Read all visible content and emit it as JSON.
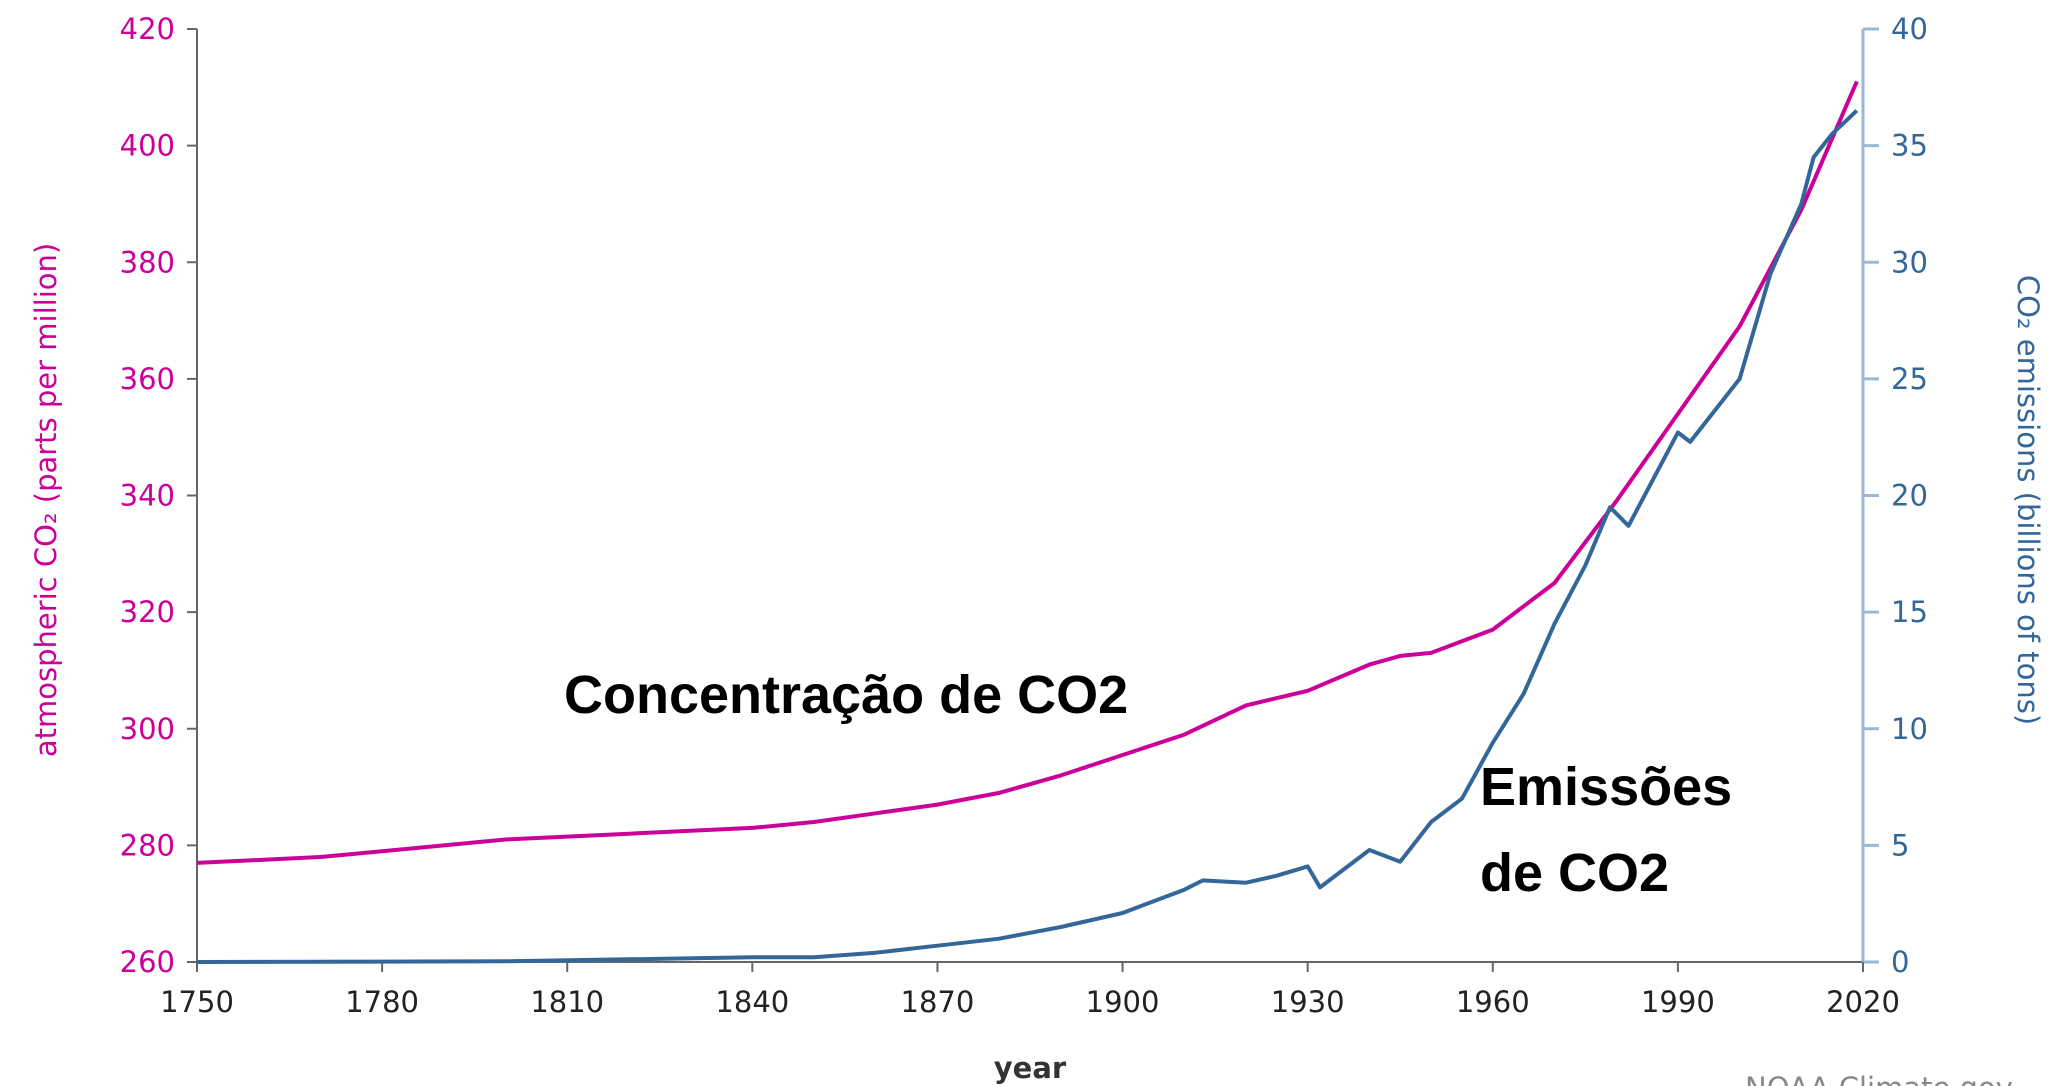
{
  "chart_data": {
    "type": "line",
    "xlabel": "year",
    "ylabel": "atmospheric CO₂ (parts per million)",
    "y2label": "CO₂ emissions (billions of tons)",
    "source": "NOAA Climate.gov",
    "xlim": [
      1750,
      2020
    ],
    "xticks": [
      1750,
      1780,
      1810,
      1840,
      1870,
      1900,
      1930,
      1960,
      1990,
      2020
    ],
    "ylim": [
      260,
      420
    ],
    "yticks": [
      260,
      280,
      300,
      320,
      340,
      360,
      380,
      400,
      420
    ],
    "y2lim": [
      0,
      40
    ],
    "y2ticks": [
      0,
      5,
      10,
      15,
      20,
      25,
      30,
      35,
      40
    ],
    "series": [
      {
        "name": "Concentração de CO2",
        "color": "#cc0099",
        "axis": "y",
        "x": [
          1750,
          1760,
          1770,
          1780,
          1790,
          1800,
          1810,
          1820,
          1830,
          1840,
          1850,
          1860,
          1870,
          1880,
          1890,
          1900,
          1910,
          1920,
          1930,
          1940,
          1945,
          1950,
          1960,
          1970,
          1980,
          1990,
          2000,
          2010,
          2019
        ],
        "values": [
          277,
          277.5,
          278,
          279,
          280,
          281,
          281.5,
          282,
          282.5,
          283,
          284,
          285.5,
          287,
          289,
          292,
          295.5,
          299,
          304,
          306.5,
          311,
          312.5,
          313,
          317,
          325,
          339,
          354,
          369,
          389,
          411
        ]
      },
      {
        "name": "Emissões de CO2",
        "color": "#336699",
        "axis": "y2",
        "x": [
          1750,
          1800,
          1840,
          1850,
          1860,
          1870,
          1880,
          1890,
          1900,
          1910,
          1913,
          1920,
          1925,
          1930,
          1932,
          1940,
          1945,
          1950,
          1955,
          1960,
          1965,
          1970,
          1975,
          1979,
          1982,
          1990,
          1992,
          2000,
          2005,
          2010,
          2012,
          2015,
          2019
        ],
        "values": [
          0,
          0.03,
          0.2,
          0.2,
          0.4,
          0.7,
          1.0,
          1.5,
          2.1,
          3.1,
          3.5,
          3.4,
          3.7,
          4.1,
          3.2,
          4.8,
          4.3,
          6.0,
          7.0,
          9.4,
          11.5,
          14.5,
          17.0,
          19.5,
          18.7,
          22.7,
          22.3,
          25,
          29.5,
          32.5,
          34.5,
          35.5,
          36.5
        ]
      }
    ]
  }
}
